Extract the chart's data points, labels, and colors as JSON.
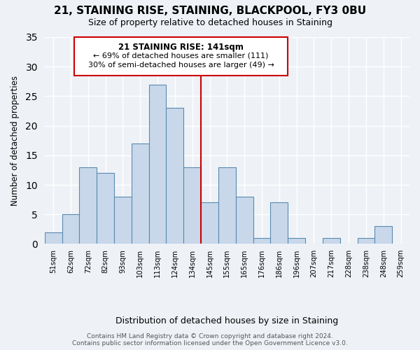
{
  "title": "21, STAINING RISE, STAINING, BLACKPOOL, FY3 0BU",
  "subtitle": "Size of property relative to detached houses in Staining",
  "xlabel": "Distribution of detached houses by size in Staining",
  "ylabel": "Number of detached properties",
  "bin_labels": [
    "51sqm",
    "62sqm",
    "72sqm",
    "82sqm",
    "93sqm",
    "103sqm",
    "113sqm",
    "124sqm",
    "134sqm",
    "145sqm",
    "155sqm",
    "165sqm",
    "176sqm",
    "186sqm",
    "196sqm",
    "207sqm",
    "217sqm",
    "228sqm",
    "238sqm",
    "248sqm",
    "259sqm"
  ],
  "bar_values": [
    2,
    5,
    13,
    12,
    8,
    17,
    27,
    23,
    13,
    7,
    13,
    8,
    1,
    7,
    1,
    0,
    1,
    0,
    1,
    3
  ],
  "bar_color": "#c8d8ea",
  "bar_edge_color": "#5a8ab0",
  "vline_x": 8.5,
  "vline_color": "#cc0000",
  "annotation_line1": "21 STAINING RISE: 141sqm",
  "annotation_line2": "← 69% of detached houses are smaller (111)",
  "annotation_line3": "30% of semi-detached houses are larger (49) →",
  "annotation_box_color": "#cc0000",
  "ylim": [
    0,
    35
  ],
  "yticks": [
    0,
    5,
    10,
    15,
    20,
    25,
    30,
    35
  ],
  "footer_line1": "Contains HM Land Registry data © Crown copyright and database right 2024.",
  "footer_line2": "Contains public sector information licensed under the Open Government Licence v3.0.",
  "background_color": "#eef2f7"
}
